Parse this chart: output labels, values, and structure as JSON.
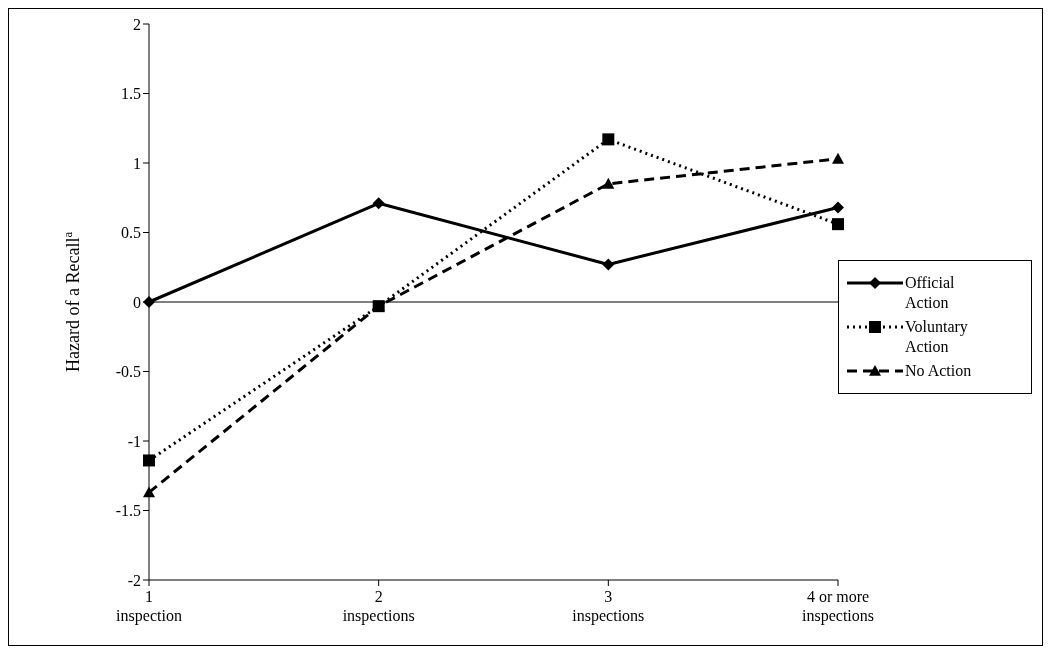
{
  "chart_data": {
    "type": "line",
    "ylabel": "Hazard of a Recall$^{a}$",
    "categories": [
      "1 inspection",
      "2 inspections",
      "3 inspections",
      "4 or more inspections"
    ],
    "series": [
      {
        "name": "Official Action",
        "color": "#000000",
        "values": [
          0,
          0.71,
          0.27,
          0.68
        ],
        "marker": "diamond",
        "line_style": "solid"
      },
      {
        "name": "Voluntary Action",
        "color": "#000000",
        "values": [
          -1.14,
          -0.03,
          1.17,
          0.56
        ],
        "marker": "square",
        "line_style": "dotted"
      },
      {
        "name": "No Action",
        "color": "#000000",
        "values": [
          -1.37,
          -0.03,
          0.85,
          1.03
        ],
        "marker": "triangle",
        "line_style": "dashed"
      }
    ],
    "ylim": [
      -2,
      2
    ],
    "yticks": [
      -2,
      -1.5,
      -1,
      -0.5,
      0,
      0.5,
      1,
      1.5,
      2
    ],
    "ref_lines": [
      {
        "axis": "y",
        "value": 0,
        "color": "#000000"
      }
    ],
    "grid": false,
    "legend": "right"
  }
}
